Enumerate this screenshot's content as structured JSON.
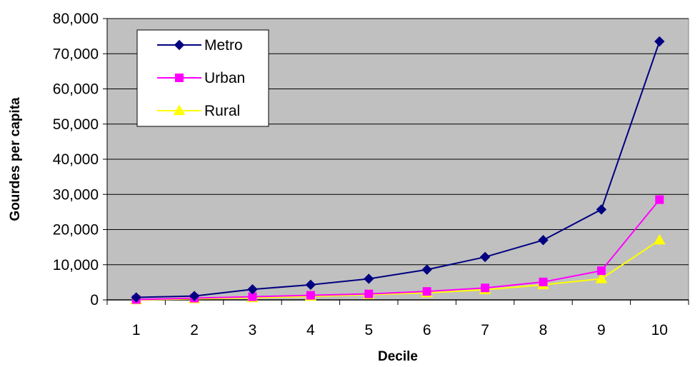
{
  "chart_data": {
    "type": "line",
    "xlabel": "Decile",
    "ylabel": "Gourdes per capita",
    "ylim": [
      0,
      80000
    ],
    "ytick_step": 10000,
    "yticks": [
      "0",
      "10,000",
      "20,000",
      "30,000",
      "40,000",
      "50,000",
      "60,000",
      "70,000",
      "80,000"
    ],
    "categories": [
      "1",
      "2",
      "3",
      "4",
      "5",
      "6",
      "7",
      "8",
      "9",
      "10"
    ],
    "plot_background": "#c0c0c0",
    "grid": true,
    "grid_color": "#000000",
    "legend_position": "top-left",
    "series": [
      {
        "name": "Metro",
        "color": "#000080",
        "marker": "diamond",
        "values": [
          700,
          1100,
          3000,
          4300,
          6000,
          8600,
          12200,
          17000,
          25700,
          73500
        ]
      },
      {
        "name": "Urban",
        "color": "#ff00ff",
        "marker": "square",
        "values": [
          100,
          500,
          900,
          1300,
          1700,
          2400,
          3400,
          5100,
          8300,
          28500
        ]
      },
      {
        "name": "Rural",
        "color": "#ffff00",
        "marker": "triangle",
        "values": [
          0,
          300,
          600,
          1000,
          1500,
          2000,
          2900,
          4300,
          6000,
          17000
        ]
      }
    ]
  }
}
